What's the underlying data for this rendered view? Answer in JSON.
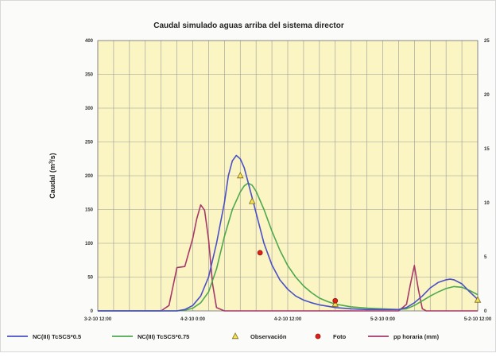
{
  "chart_data": {
    "type": "line",
    "title": "Caudal simulado aguas arriba del sistema director",
    "ylabel": "Caudal (m³/s)",
    "ylabel_parts": {
      "main": "Caudal (m",
      "sup": "3",
      "tail": "/s)"
    },
    "xlabel": "",
    "x_unit": "hours from 3-2-10 12:00",
    "xlim": [
      0,
      48
    ],
    "ylim": [
      0,
      400
    ],
    "y2lim": [
      0,
      25
    ],
    "x_ticks": [
      {
        "x": 0,
        "label": "3-2-10 12:00"
      },
      {
        "x": 12,
        "label": "4-2-10 0:00"
      },
      {
        "x": 24,
        "label": "4-2-10 12:00"
      },
      {
        "x": 36,
        "label": "5-2-10 0:00"
      },
      {
        "x": 48,
        "label": "5-2-10 12:00"
      }
    ],
    "y_ticks": [
      "0",
      "50",
      "100",
      "150",
      "200",
      "250",
      "300",
      "350",
      "400"
    ],
    "y2_ticks": [
      "0",
      "5",
      "10",
      "15",
      "20",
      "25"
    ],
    "x_minor_step_hours": 2,
    "grid": true,
    "legend_position": "bottom",
    "colors": {
      "plot_background": "#fbf5c3",
      "grid": "#9a9a9a",
      "nc05": "#4a4fc8",
      "nc075": "#4ea84e",
      "pp": "#a8386a",
      "obs_fill": "#f5e05a",
      "obs_stroke": "#7a6a10",
      "foto_fill": "#e2201a",
      "foto_stroke": "#8a1410"
    },
    "series": [
      {
        "name": "NC(III) TcSCS*0.5",
        "axis": "left",
        "kind": "line",
        "points": [
          [
            0,
            0
          ],
          [
            10,
            0
          ],
          [
            11,
            2
          ],
          [
            12,
            8
          ],
          [
            13,
            22
          ],
          [
            14,
            50
          ],
          [
            15,
            100
          ],
          [
            16,
            160
          ],
          [
            16.5,
            200
          ],
          [
            17,
            222
          ],
          [
            17.5,
            230
          ],
          [
            18,
            225
          ],
          [
            18.5,
            212
          ],
          [
            19,
            190
          ],
          [
            20,
            145
          ],
          [
            21,
            100
          ],
          [
            22,
            68
          ],
          [
            23,
            46
          ],
          [
            24,
            32
          ],
          [
            25,
            22
          ],
          [
            26,
            16
          ],
          [
            27,
            12
          ],
          [
            28,
            9
          ],
          [
            29,
            7
          ],
          [
            30,
            5
          ],
          [
            32,
            3
          ],
          [
            34,
            2
          ],
          [
            36,
            2
          ],
          [
            38,
            2
          ],
          [
            39,
            5
          ],
          [
            40,
            12
          ],
          [
            41,
            22
          ],
          [
            42,
            34
          ],
          [
            43,
            42
          ],
          [
            44,
            46
          ],
          [
            44.5,
            47
          ],
          [
            45,
            46
          ],
          [
            46,
            40
          ],
          [
            47,
            28
          ],
          [
            48,
            17
          ]
        ]
      },
      {
        "name": "NC(III) TcSCS*0.75",
        "axis": "left",
        "kind": "line",
        "points": [
          [
            0,
            0
          ],
          [
            10,
            0
          ],
          [
            11,
            1
          ],
          [
            12,
            4
          ],
          [
            13,
            12
          ],
          [
            14,
            28
          ],
          [
            15,
            62
          ],
          [
            16,
            110
          ],
          [
            17,
            150
          ],
          [
            18,
            176
          ],
          [
            18.5,
            185
          ],
          [
            19,
            189
          ],
          [
            19.5,
            186
          ],
          [
            20,
            177
          ],
          [
            21,
            150
          ],
          [
            22,
            118
          ],
          [
            23,
            90
          ],
          [
            24,
            67
          ],
          [
            25,
            50
          ],
          [
            26,
            37
          ],
          [
            27,
            27
          ],
          [
            28,
            19
          ],
          [
            29,
            14
          ],
          [
            30,
            10
          ],
          [
            31,
            8
          ],
          [
            32,
            6
          ],
          [
            34,
            4
          ],
          [
            36,
            3
          ],
          [
            38,
            2
          ],
          [
            39,
            3
          ],
          [
            40,
            8
          ],
          [
            41,
            15
          ],
          [
            42,
            22
          ],
          [
            43,
            28
          ],
          [
            44,
            33
          ],
          [
            45,
            36
          ],
          [
            46,
            35
          ],
          [
            47,
            30
          ],
          [
            48,
            24
          ]
        ]
      },
      {
        "name": "Observación",
        "axis": "left",
        "kind": "marker-triangle",
        "points": [
          [
            18,
            200
          ],
          [
            19.5,
            162
          ],
          [
            30,
            10
          ],
          [
            48,
            16
          ]
        ]
      },
      {
        "name": "Foto",
        "axis": "left",
        "kind": "marker-circle",
        "points": [
          [
            20.5,
            86
          ],
          [
            30,
            15
          ]
        ]
      },
      {
        "name": "pp horaria (mm)",
        "axis": "right",
        "kind": "line",
        "points": [
          [
            0,
            0
          ],
          [
            8,
            0
          ],
          [
            9,
            0.5
          ],
          [
            10,
            4
          ],
          [
            11,
            4.1
          ],
          [
            12,
            6.7
          ],
          [
            12.5,
            8.5
          ],
          [
            13,
            9.8
          ],
          [
            13.5,
            9.3
          ],
          [
            14,
            6.6
          ],
          [
            14.5,
            2.5
          ],
          [
            15,
            0.3
          ],
          [
            16,
            0
          ],
          [
            36,
            0
          ],
          [
            38,
            0
          ],
          [
            39,
            0.6
          ],
          [
            39.5,
            2.5
          ],
          [
            40,
            4.2
          ],
          [
            40.5,
            2.0
          ],
          [
            41,
            0.2
          ],
          [
            41.5,
            0
          ],
          [
            48,
            0
          ]
        ]
      }
    ]
  }
}
